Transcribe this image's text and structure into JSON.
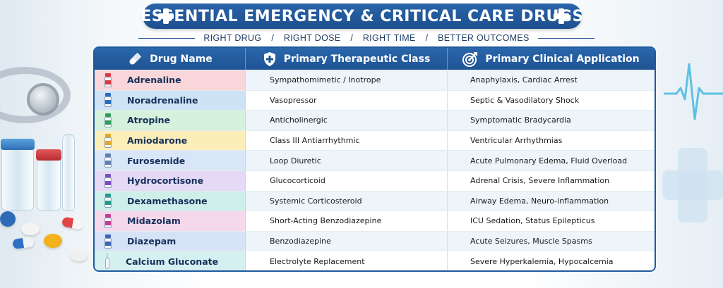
{
  "header": {
    "title": "ESSENTIAL EMERGENCY & CRITICAL CARE DRUGS",
    "tagline": [
      "RIGHT DRUG",
      "RIGHT DOSE",
      "RIGHT TIME",
      "BETTER OUTCOMES"
    ],
    "separator": "/"
  },
  "table": {
    "columns": [
      {
        "label": "Drug Name",
        "icon": "pill-icon"
      },
      {
        "label": "Primary Therapeutic Class",
        "icon": "shield-plus-icon"
      },
      {
        "label": "Primary Clinical Application",
        "icon": "target-icon"
      }
    ],
    "rows": [
      {
        "drug": "Adrenaline",
        "class": "Sympathomimetic / Inotrope",
        "application": "Anaphylaxis, Cardiac Arrest",
        "tint": "#f9d6d9",
        "cap": "#d9363e",
        "icon": "vial-icon"
      },
      {
        "drug": "Noradrenaline",
        "class": "Vasopressor",
        "application": "Septic & Vasodilatory Shock",
        "tint": "#cfe3f7",
        "cap": "#2c6cc0",
        "icon": "vial-icon"
      },
      {
        "drug": "Atropine",
        "class": "Anticholinergic",
        "application": "Symptomatic Bradycardia",
        "tint": "#d6f1dc",
        "cap": "#2e9c59",
        "icon": "vial-icon"
      },
      {
        "drug": "Amiodarone",
        "class": "Class III Antiarrhythmic",
        "application": "Ventricular Arrhythmias",
        "tint": "#fbeeb9",
        "cap": "#e0a92a",
        "icon": "vial-icon"
      },
      {
        "drug": "Furosemide",
        "class": "Loop Diuretic",
        "application": "Acute Pulmonary Edema, Fluid Overload",
        "tint": "#d8e6f8",
        "cap": "#5f7fb3",
        "icon": "vial-icon"
      },
      {
        "drug": "Hydrocortisone",
        "class": "Glucocorticoid",
        "application": "Adrenal Crisis, Severe Inflammation",
        "tint": "#e5d9f6",
        "cap": "#7b4fc2",
        "icon": "vial-icon"
      },
      {
        "drug": "Dexamethasone",
        "class": "Systemic Corticosteroid",
        "application": "Airway Edema, Neuro-inflammation",
        "tint": "#cdeee9",
        "cap": "#1f9b8b",
        "icon": "vial-icon"
      },
      {
        "drug": "Midazolam",
        "class": "Short-Acting Benzodiazepine",
        "application": "ICU Sedation, Status Epilepticus",
        "tint": "#f6d8ec",
        "cap": "#bf3f92",
        "icon": "vial-icon"
      },
      {
        "drug": "Diazepam",
        "class": "Benzodiazepine",
        "application": "Acute Seizures, Muscle Spasms",
        "tint": "#d6e3f6",
        "cap": "#3c66b4",
        "icon": "vial-icon"
      },
      {
        "drug": "Calcium Gluconate",
        "class": "Electrolyte Replacement",
        "application": "Severe Hyperkalemia, Hypocalcemia",
        "tint": "#d5f0f1",
        "cap": "#7fb8c6",
        "icon": "ampoule-icon"
      }
    ]
  },
  "colors": {
    "brand": "#1f5a9c",
    "ecg": "#5fc1e3"
  }
}
